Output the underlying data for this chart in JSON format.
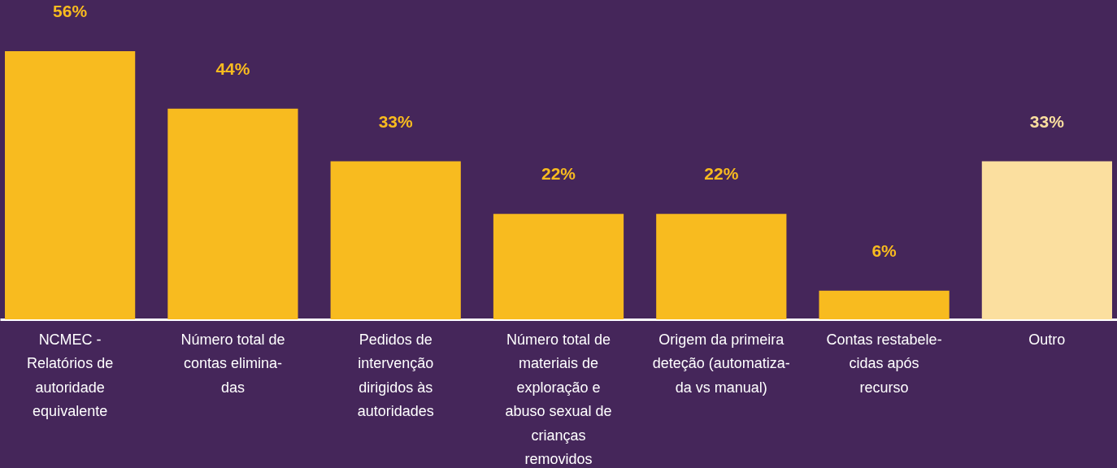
{
  "chart_data": {
    "type": "bar",
    "categories": [
      "NCMEC -\nRelatórios de\nautoridade\nequivalente",
      "Número total de\ncontas elimina-\ndas",
      "Pedidos de\nintervenção\ndirigidos às\nautoridades",
      "Número total de\nmateriais de\nexploração e\nabuso sexual de\ncrianças\nremovidos",
      "Origem da primeira\ndeteção (automatiza-\nda vs manual)",
      "Contas restabele-\ncidas após\nrecurso",
      "Outro"
    ],
    "values": [
      56,
      44,
      33,
      22,
      22,
      6,
      33
    ],
    "value_labels": [
      "56%",
      "44%",
      "33%",
      "22%",
      "22%",
      "6%",
      "33%"
    ],
    "colors": [
      "#f8bb1f",
      "#f8bb1f",
      "#f8bb1f",
      "#f8bb1f",
      "#f8bb1f",
      "#f8bb1f",
      "#fbdf9f"
    ],
    "grid": false
  }
}
